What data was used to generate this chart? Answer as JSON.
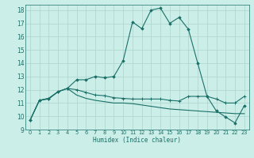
{
  "xlabel": "Humidex (Indice chaleur)",
  "background_color": "#cceee8",
  "grid_color": "#aad4cc",
  "line_color": "#1a7068",
  "xlim": [
    -0.5,
    23.5
  ],
  "ylim": [
    9,
    18.4
  ],
  "xticks": [
    0,
    1,
    2,
    3,
    4,
    5,
    6,
    7,
    8,
    9,
    10,
    11,
    12,
    13,
    14,
    15,
    16,
    17,
    18,
    19,
    20,
    21,
    22,
    23
  ],
  "yticks": [
    9,
    10,
    11,
    12,
    13,
    14,
    15,
    16,
    17,
    18
  ],
  "line1_x": [
    0,
    1,
    2,
    3,
    4,
    5,
    6,
    7,
    8,
    9,
    10,
    11,
    12,
    13,
    14,
    15,
    16,
    17,
    18,
    19,
    20,
    21,
    22,
    23
  ],
  "line1_y": [
    9.7,
    11.2,
    11.3,
    11.85,
    12.1,
    12.75,
    12.75,
    13.0,
    12.9,
    13.0,
    14.2,
    17.1,
    16.6,
    18.0,
    18.15,
    17.0,
    17.45,
    16.55,
    14.0,
    11.5,
    10.4,
    9.95,
    9.5,
    10.8
  ],
  "line2_x": [
    0,
    1,
    2,
    3,
    4,
    5,
    6,
    7,
    8,
    9,
    10,
    11,
    12,
    13,
    14,
    15,
    16,
    17,
    18,
    19,
    20,
    21,
    22,
    23
  ],
  "line2_y": [
    9.7,
    11.2,
    11.35,
    11.85,
    12.1,
    12.0,
    11.8,
    11.6,
    11.55,
    11.4,
    11.35,
    11.3,
    11.3,
    11.3,
    11.3,
    11.2,
    11.15,
    11.5,
    11.5,
    11.5,
    11.3,
    11.0,
    11.0,
    11.5
  ],
  "line3_x": [
    0,
    1,
    2,
    3,
    4,
    5,
    6,
    7,
    8,
    9,
    10,
    11,
    12,
    13,
    14,
    15,
    16,
    17,
    18,
    19,
    20,
    21,
    22,
    23
  ],
  "line3_y": [
    9.7,
    11.2,
    11.35,
    11.85,
    12.1,
    11.6,
    11.35,
    11.2,
    11.1,
    11.0,
    11.0,
    10.95,
    10.85,
    10.75,
    10.65,
    10.55,
    10.5,
    10.45,
    10.4,
    10.35,
    10.3,
    10.25,
    10.2,
    10.2
  ]
}
